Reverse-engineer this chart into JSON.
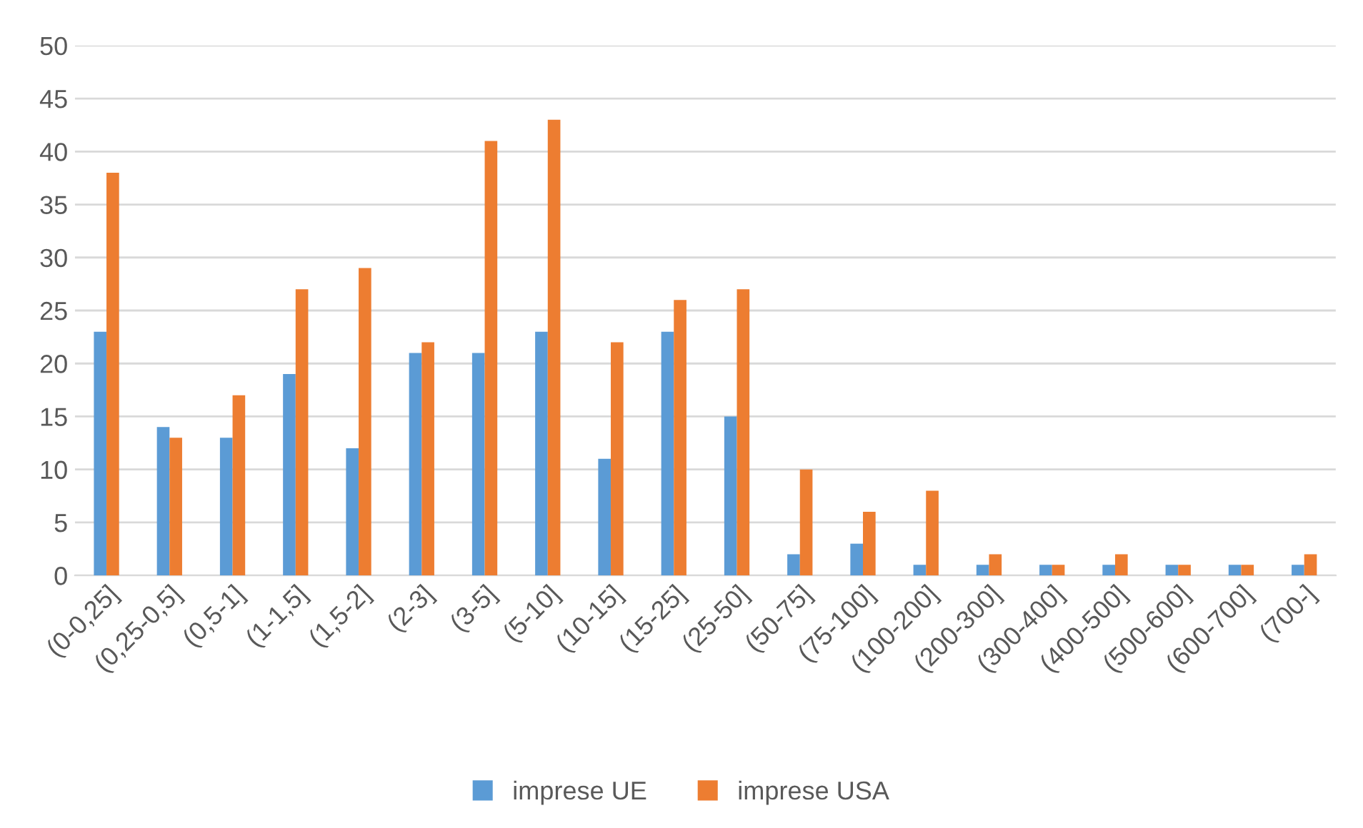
{
  "chart_data": {
    "type": "bar",
    "categories": [
      "(0-0,25]",
      "(0,25-0,5]",
      "(0,5-1]",
      "(1-1,5]",
      "(1,5-2]",
      "(2-3]",
      "(3-5]",
      "(5-10]",
      "(10-15]",
      "(15-25]",
      "(25-50]",
      "(50-75]",
      "(75-100]",
      "(100-200]",
      "(200-300]",
      "(300-400]",
      "(400-500]",
      "(500-600]",
      "(600-700]",
      "(700-]"
    ],
    "series": [
      {
        "name": "imprese UE",
        "color": "#5b9bd5",
        "values": [
          23,
          14,
          13,
          19,
          12,
          21,
          21,
          23,
          11,
          23,
          15,
          2,
          3,
          1,
          1,
          1,
          1,
          1,
          1,
          1
        ]
      },
      {
        "name": "imprese USA",
        "color": "#ed7d31",
        "values": [
          38,
          13,
          17,
          27,
          29,
          22,
          41,
          43,
          22,
          26,
          27,
          10,
          6,
          8,
          2,
          1,
          2,
          1,
          1,
          2
        ]
      }
    ],
    "ylim": [
      0,
      50
    ],
    "yticks": [
      0,
      5,
      10,
      15,
      20,
      25,
      30,
      35,
      40,
      45,
      50
    ],
    "grid": "y",
    "legend": "bottom"
  }
}
